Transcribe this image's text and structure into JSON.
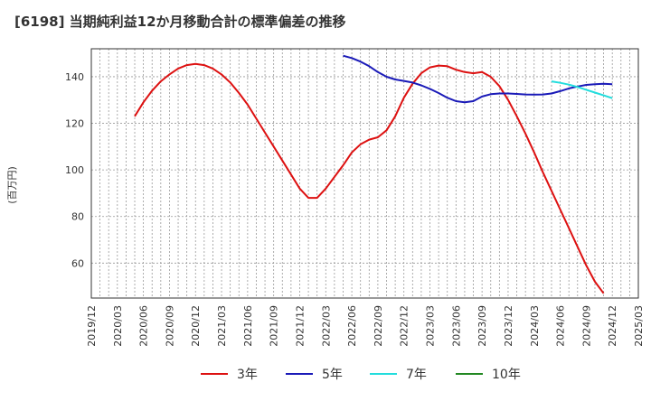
{
  "chart_data": {
    "type": "line",
    "title": "[6198]  当期純利益12か月移動合計の標準偏差の推移",
    "ylabel": "(百万円)",
    "xlabel": "",
    "ylim": [
      45,
      152
    ],
    "yticks": [
      60,
      80,
      100,
      120,
      140
    ],
    "x_range": [
      "2019-12",
      "2025-03"
    ],
    "xticks": [
      "2019/12",
      "2020/03",
      "2020/06",
      "2020/09",
      "2020/12",
      "2021/03",
      "2021/06",
      "2021/09",
      "2021/12",
      "2022/03",
      "2022/06",
      "2022/09",
      "2022/12",
      "2023/03",
      "2023/06",
      "2023/09",
      "2023/12",
      "2024/03",
      "2024/06",
      "2024/09",
      "2024/12",
      "2025/03"
    ],
    "grid": true,
    "legend_position": "bottom",
    "series": [
      {
        "name": "3年",
        "color": "#dd1111",
        "points": [
          [
            "2020-05",
            123
          ],
          [
            "2020-06",
            129
          ],
          [
            "2020-07",
            134
          ],
          [
            "2020-08",
            138
          ],
          [
            "2020-09",
            141
          ],
          [
            "2020-10",
            143.5
          ],
          [
            "2020-11",
            145
          ],
          [
            "2020-12",
            145.5
          ],
          [
            "2021-01",
            145
          ],
          [
            "2021-02",
            143.5
          ],
          [
            "2021-03",
            141
          ],
          [
            "2021-04",
            137.5
          ],
          [
            "2021-05",
            133
          ],
          [
            "2021-06",
            128
          ],
          [
            "2021-07",
            122
          ],
          [
            "2021-08",
            116
          ],
          [
            "2021-09",
            110
          ],
          [
            "2021-10",
            104
          ],
          [
            "2021-11",
            98
          ],
          [
            "2021-12",
            92
          ],
          [
            "2022-01",
            88
          ],
          [
            "2022-02",
            88
          ],
          [
            "2022-03",
            92
          ],
          [
            "2022-04",
            97
          ],
          [
            "2022-05",
            102
          ],
          [
            "2022-06",
            107.5
          ],
          [
            "2022-07",
            111
          ],
          [
            "2022-08",
            113
          ],
          [
            "2022-09",
            114
          ],
          [
            "2022-10",
            117
          ],
          [
            "2022-11",
            123
          ],
          [
            "2022-12",
            131
          ],
          [
            "2023-01",
            137
          ],
          [
            "2023-02",
            141.5
          ],
          [
            "2023-03",
            144
          ],
          [
            "2023-04",
            144.8
          ],
          [
            "2023-05",
            144.5
          ],
          [
            "2023-06",
            143
          ],
          [
            "2023-07",
            142
          ],
          [
            "2023-08",
            141.5
          ],
          [
            "2023-09",
            142
          ],
          [
            "2023-10",
            140
          ],
          [
            "2023-11",
            136
          ],
          [
            "2023-12",
            130
          ],
          [
            "2024-01",
            123
          ],
          [
            "2024-02",
            115.5
          ],
          [
            "2024-03",
            107.5
          ],
          [
            "2024-04",
            99
          ],
          [
            "2024-05",
            91
          ],
          [
            "2024-06",
            83
          ],
          [
            "2024-07",
            75
          ],
          [
            "2024-08",
            67
          ],
          [
            "2024-09",
            59
          ],
          [
            "2024-10",
            52
          ],
          [
            "2024-11",
            47
          ]
        ]
      },
      {
        "name": "5年",
        "color": "#1a1ab8",
        "points": [
          [
            "2022-05",
            149
          ],
          [
            "2022-06",
            148
          ],
          [
            "2022-07",
            146.5
          ],
          [
            "2022-08",
            144.5
          ],
          [
            "2022-09",
            142
          ],
          [
            "2022-10",
            140
          ],
          [
            "2022-11",
            138.8
          ],
          [
            "2022-12",
            138.2
          ],
          [
            "2023-01",
            137.5
          ],
          [
            "2023-02",
            136.3
          ],
          [
            "2023-03",
            134.8
          ],
          [
            "2023-04",
            133
          ],
          [
            "2023-05",
            131
          ],
          [
            "2023-06",
            129.5
          ],
          [
            "2023-07",
            129
          ],
          [
            "2023-08",
            129.5
          ],
          [
            "2023-09",
            131.5
          ],
          [
            "2023-10",
            132.5
          ],
          [
            "2023-11",
            132.8
          ],
          [
            "2023-12",
            132.8
          ],
          [
            "2024-01",
            132.6
          ],
          [
            "2024-02",
            132.4
          ],
          [
            "2024-03",
            132.3
          ],
          [
            "2024-04",
            132.4
          ],
          [
            "2024-05",
            132.8
          ],
          [
            "2024-06",
            133.8
          ],
          [
            "2024-07",
            135
          ],
          [
            "2024-08",
            135.8
          ],
          [
            "2024-09",
            136.5
          ],
          [
            "2024-10",
            136.8
          ],
          [
            "2024-11",
            137
          ],
          [
            "2024-12",
            136.8
          ]
        ]
      },
      {
        "name": "7年",
        "color": "#22dddd",
        "points": [
          [
            "2024-05",
            138
          ],
          [
            "2024-06",
            137.4
          ],
          [
            "2024-07",
            136.6
          ],
          [
            "2024-08",
            135.6
          ],
          [
            "2024-09",
            134.4
          ],
          [
            "2024-10",
            133.2
          ],
          [
            "2024-11",
            132
          ],
          [
            "2024-12",
            130.8
          ]
        ]
      },
      {
        "name": "10年",
        "color": "#228822",
        "points": []
      }
    ]
  }
}
